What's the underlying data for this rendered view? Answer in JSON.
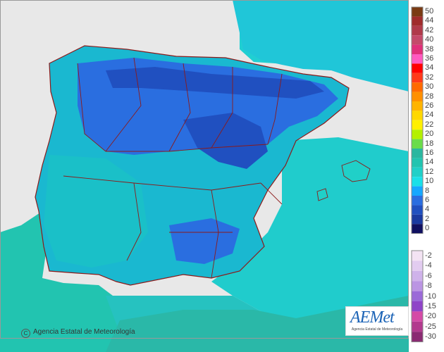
{
  "legend": {
    "positive_labels": [
      "50",
      "44",
      "42",
      "40",
      "38",
      "36",
      "34",
      "32",
      "30",
      "28",
      "26",
      "24",
      "22",
      "20",
      "18",
      "16",
      "14",
      "12",
      "10",
      "8",
      "6",
      "4",
      "2",
      "0"
    ],
    "negative_labels": [
      "-2",
      "-4",
      "-6",
      "-8",
      "-10",
      "-15",
      "-20",
      "-25",
      "-30"
    ],
    "positive_colors": [
      "#7a3b14",
      "#a02c2c",
      "#b03a4a",
      "#c44a6a",
      "#e0307a",
      "#ff5ac0",
      "#ff0000",
      "#ff3a1a",
      "#ff6a00",
      "#ff9000",
      "#ffb400",
      "#ffd800",
      "#fff000",
      "#b4f000",
      "#6adc4a",
      "#2ab7a0",
      "#22c4b0",
      "#20d0c8",
      "#1ae0e8",
      "#16a8ff",
      "#2a6ee0",
      "#2050c0",
      "#1a3aa0",
      "#101060"
    ],
    "negative_colors": [
      "#f3e3f3",
      "#e2ccf0",
      "#cfb2ea",
      "#bb95e3",
      "#9b6ad8",
      "#8f44c8",
      "#d44aa6",
      "#b23a8e",
      "#8a2a72"
    ]
  },
  "map": {
    "sea_color": "#20c8c8",
    "background_color": "#e8e8e8",
    "border_color": "#8b1a1a"
  },
  "credit": {
    "symbol": "C",
    "text": "Agencia Estatal de Meteorología"
  },
  "logo": {
    "name": "AEMet",
    "subtitle": "Agencia Estatal de Meteorología"
  }
}
